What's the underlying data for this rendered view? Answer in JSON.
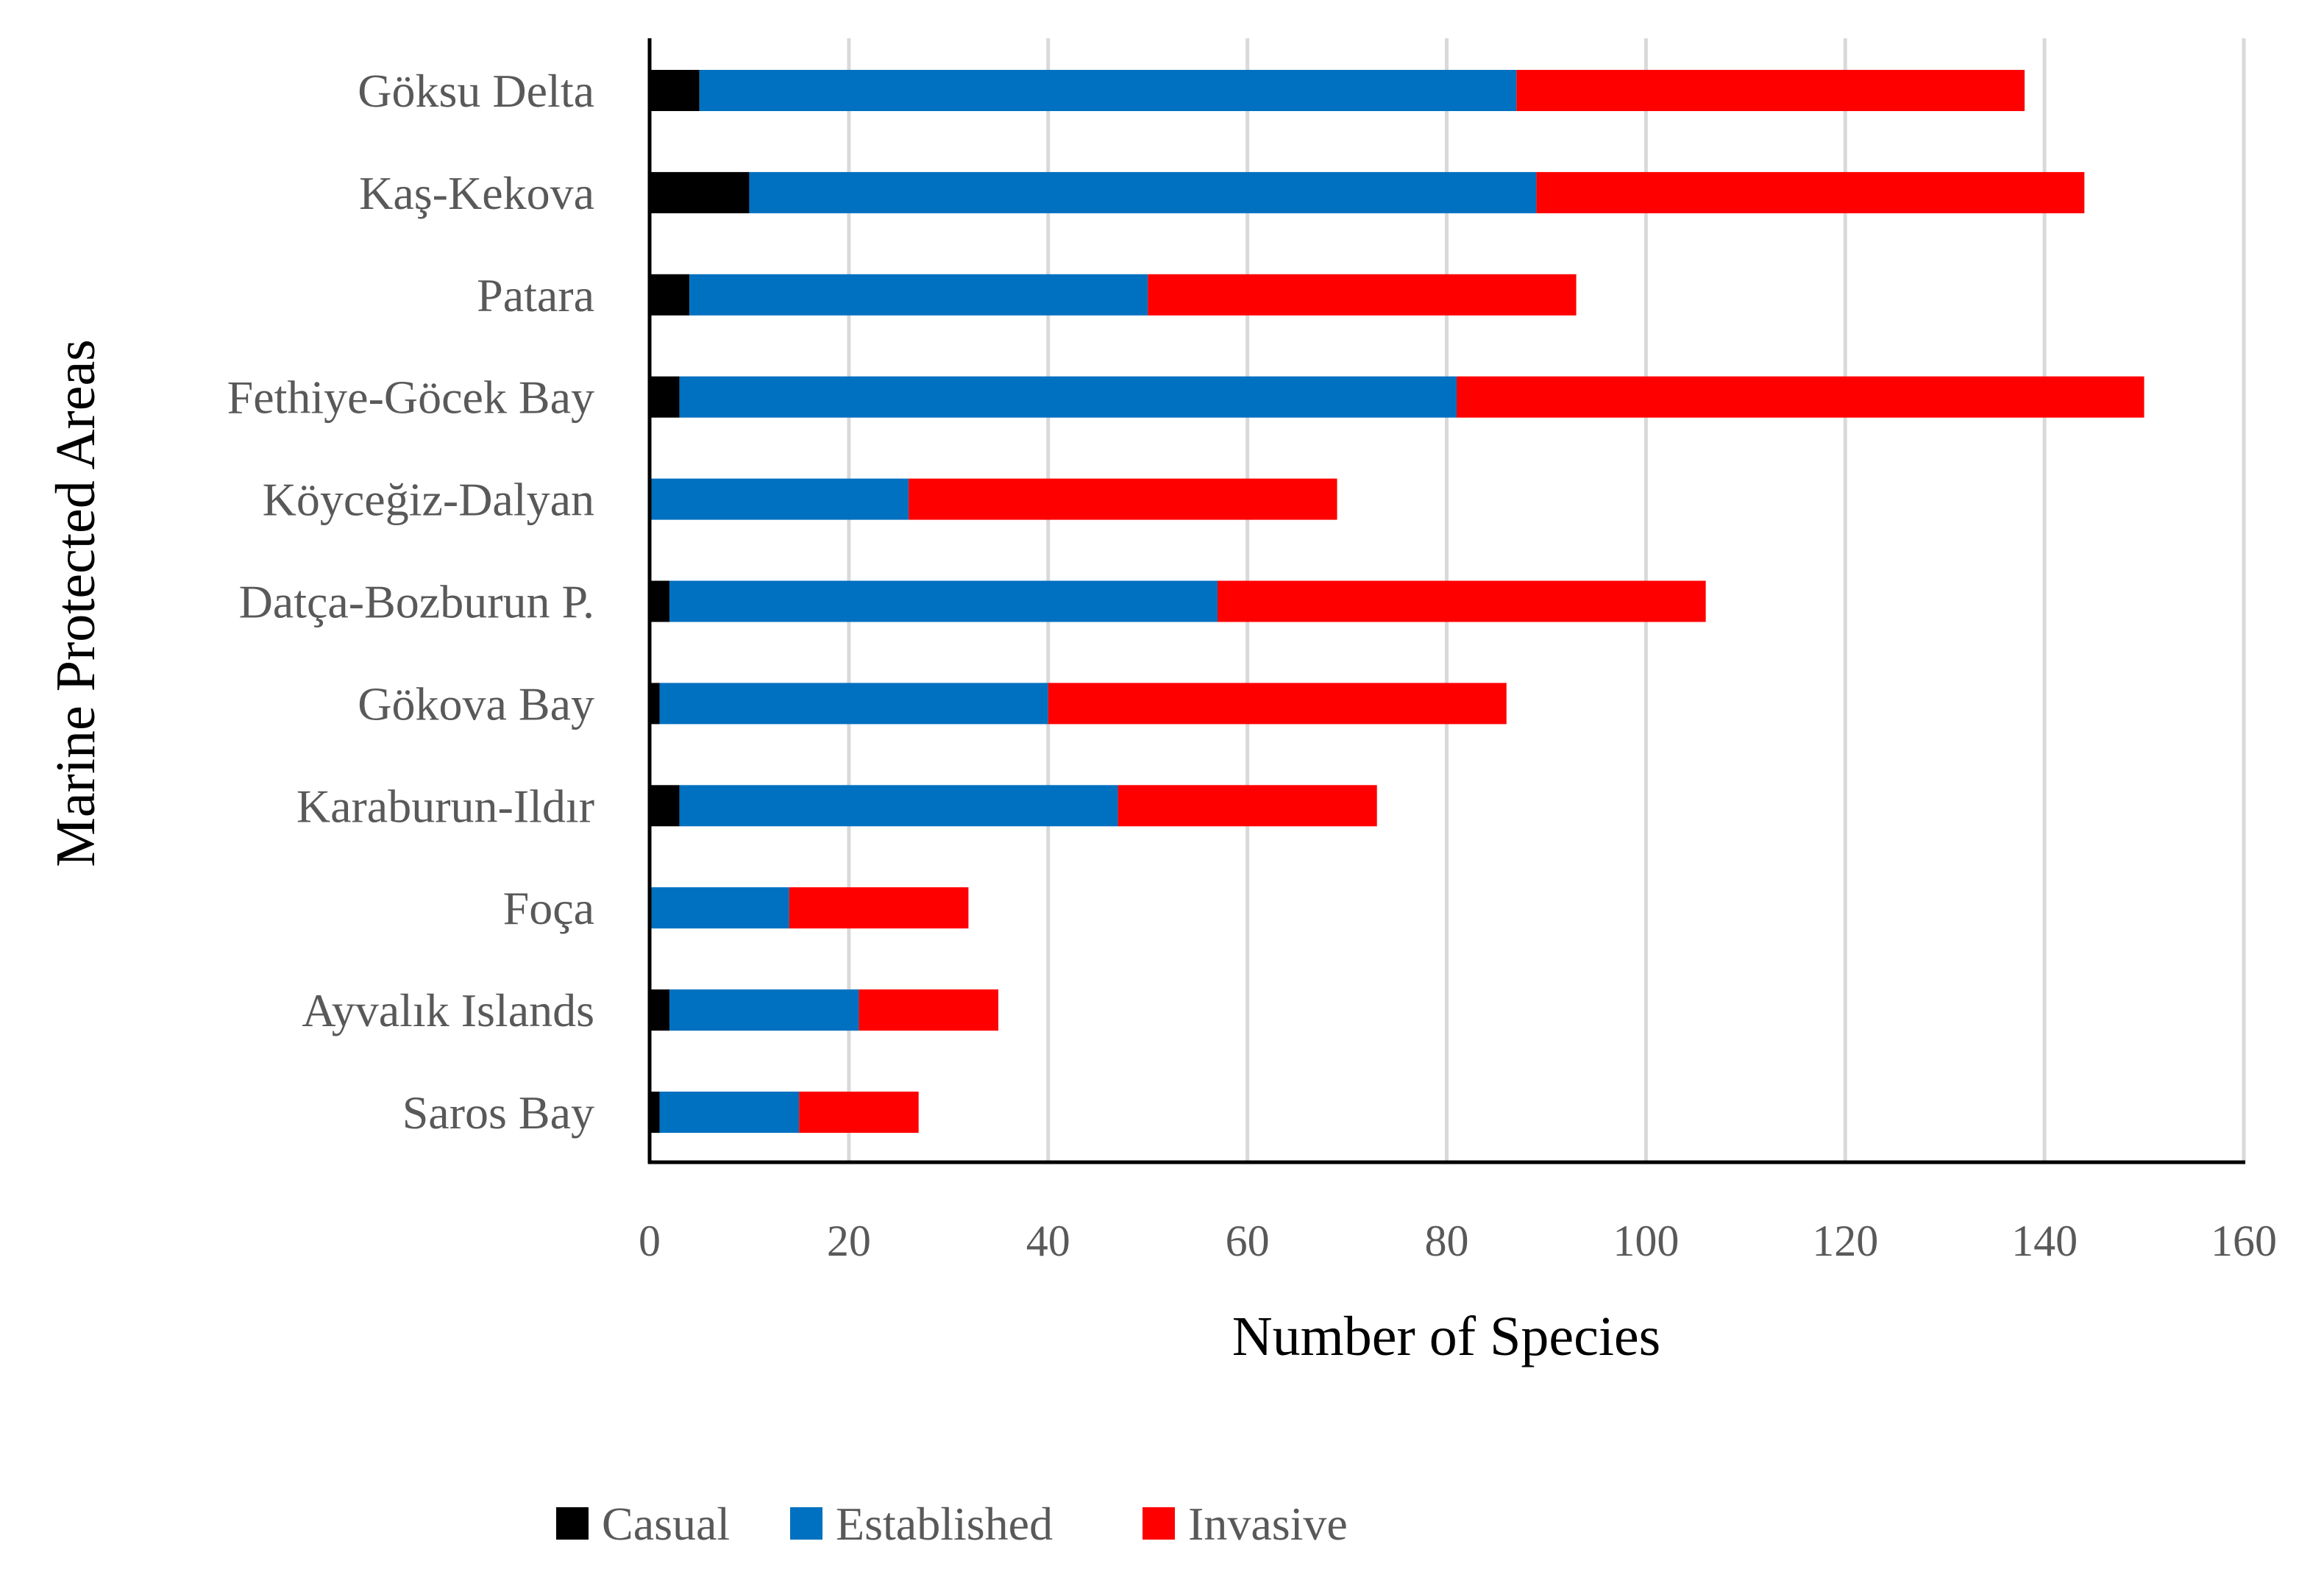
{
  "chart_data": {
    "type": "bar",
    "orientation": "horizontal",
    "stacked": true,
    "title": "",
    "xlabel": "Number of Species",
    "ylabel": "Marine Protected Areas",
    "xlim": [
      0,
      160
    ],
    "xticks": [
      0,
      20,
      40,
      60,
      80,
      100,
      120,
      140,
      160
    ],
    "grid": "vertical",
    "legend_position": "bottom",
    "categories": [
      "Göksu Delta",
      "Kaş-Kekova",
      "Patara",
      "Fethiye-Göcek Bay",
      "Köyceğiz-Dalyan",
      "Datça-Bozburun P.",
      "Gökova Bay",
      "Karaburun-Ildır",
      "Foça",
      "Ayvalık Islands",
      "Saros Bay"
    ],
    "series": [
      {
        "name": "Casual",
        "color": "#000000",
        "values": [
          5,
          10,
          4,
          3,
          0,
          2,
          1,
          3,
          0,
          2,
          1
        ]
      },
      {
        "name": "Established",
        "color": "#0070C0",
        "values": [
          82,
          79,
          46,
          78,
          26,
          55,
          39,
          44,
          14,
          19,
          14
        ]
      },
      {
        "name": "Invasive",
        "color": "#FF0000",
        "values": [
          51,
          55,
          43,
          69,
          43,
          49,
          46,
          26,
          18,
          14,
          12
        ]
      }
    ],
    "colors": {
      "grid": "#D9D9D9",
      "axis": "#000000",
      "label": "#595959"
    }
  }
}
